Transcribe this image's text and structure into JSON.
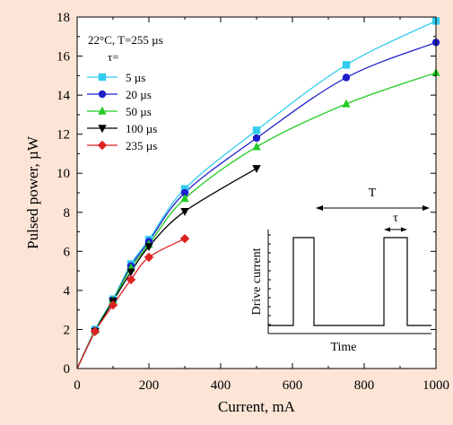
{
  "chart_data": {
    "type": "line",
    "xlabel": "Current, mA",
    "ylabel": "Pulsed power, µW",
    "xlim": [
      0,
      1000
    ],
    "ylim": [
      0,
      18
    ],
    "xticks": [
      0,
      200,
      400,
      600,
      800,
      1000
    ],
    "yticks": [
      0,
      2,
      4,
      6,
      8,
      10,
      12,
      14,
      16,
      18
    ],
    "x_minor_step": 100,
    "y_minor_step": 1,
    "grid": false,
    "legend_placement": "top-left",
    "condition_label": "22°C, T=255 µs",
    "legend_title": "τ=",
    "series": [
      {
        "name": "5 µs",
        "color": "#33ccee",
        "marker": "square",
        "x": [
          0,
          50,
          100,
          150,
          200,
          300,
          500,
          750,
          1000
        ],
        "y": [
          0,
          2.0,
          3.55,
          5.35,
          6.6,
          9.2,
          12.2,
          15.55,
          17.8
        ]
      },
      {
        "name": "20 µs",
        "color": "#1f1fcc",
        "marker": "circle",
        "x": [
          0,
          50,
          100,
          150,
          200,
          300,
          500,
          750,
          1000
        ],
        "y": [
          0,
          1.95,
          3.5,
          5.25,
          6.5,
          9.0,
          11.8,
          14.9,
          16.7
        ]
      },
      {
        "name": "50 µs",
        "color": "#22cc22",
        "marker": "triangle-up",
        "x": [
          0,
          50,
          100,
          150,
          200,
          300,
          500,
          750,
          1000
        ],
        "y": [
          0,
          1.95,
          3.5,
          5.15,
          6.35,
          8.7,
          11.35,
          13.55,
          15.15
        ]
      },
      {
        "name": "100 µs",
        "color": "#000000",
        "marker": "triangle-down",
        "x": [
          0,
          50,
          100,
          150,
          200,
          300,
          500
        ],
        "y": [
          0,
          1.9,
          3.45,
          4.95,
          6.25,
          8.05,
          10.25
        ]
      },
      {
        "name": "235 µs",
        "color": "#dd2222",
        "marker": "diamond",
        "x": [
          0,
          50,
          100,
          150,
          200,
          300
        ],
        "y": [
          0,
          1.9,
          3.25,
          4.55,
          5.7,
          6.65
        ]
      }
    ],
    "inset": {
      "ylabel": "Drive current",
      "xlabel": "Time",
      "period_label": "T",
      "width_label": "τ"
    }
  }
}
